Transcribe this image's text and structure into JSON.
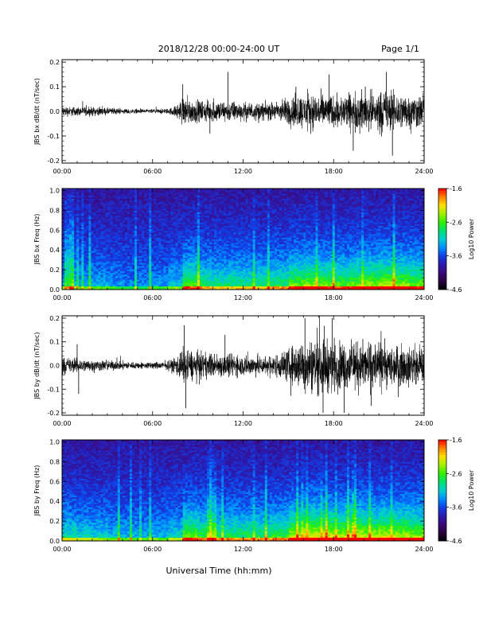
{
  "header": {
    "title": "2018/12/28  00:00-24:00 UT",
    "page": "Page 1/1"
  },
  "footer": {
    "xlabel": "Universal Time (hh:mm)"
  },
  "colors": {
    "colormap": [
      "#000000",
      "#2a0040",
      "#3c0a78",
      "#2a1ab0",
      "#1040e8",
      "#0090ff",
      "#00d0d0",
      "#00e070",
      "#30f000",
      "#a0f000",
      "#ffe000",
      "#ff8000",
      "#ff0000"
    ],
    "trace": "#000000",
    "axis": "#000000"
  },
  "chart_data": [
    {
      "type": "line",
      "id": "bx-dbdt",
      "ylabel": "JBS bx dB/dt (nT/sec)",
      "x_ticks": [
        "00:00",
        "06:00",
        "12:00",
        "18:00",
        "24:00"
      ],
      "y_ticks": [
        "0.2",
        "0.1",
        "0.0",
        "-0.1",
        "-0.2"
      ],
      "ylim": [
        -0.21,
        0.21
      ],
      "xlim": [
        0,
        24
      ],
      "envelope": {
        "hours": [
          0,
          1,
          2,
          3,
          4,
          5,
          6,
          7,
          7.5,
          8,
          9,
          10,
          11,
          12,
          13,
          14,
          15,
          16,
          17,
          18,
          19,
          20,
          21,
          22,
          23,
          24
        ],
        "amplitude": [
          0.03,
          0.025,
          0.025,
          0.02,
          0.015,
          0.012,
          0.012,
          0.015,
          0.03,
          0.08,
          0.06,
          0.06,
          0.06,
          0.05,
          0.05,
          0.05,
          0.08,
          0.1,
          0.1,
          0.09,
          0.1,
          0.11,
          0.12,
          0.11,
          0.1,
          0.09
        ]
      },
      "spikes": [
        {
          "hour": 8.0,
          "value": 0.11
        },
        {
          "hour": 11.0,
          "value": 0.16
        },
        {
          "hour": 15.5,
          "value": 0.1
        },
        {
          "hour": 17.7,
          "value": 0.15
        },
        {
          "hour": 19.3,
          "value": -0.16
        },
        {
          "hour": 20.1,
          "value": 0.1
        },
        {
          "hour": 21.9,
          "value": -0.18
        },
        {
          "hour": 21.5,
          "value": 0.16
        },
        {
          "hour": 9.8,
          "value": -0.09
        }
      ]
    },
    {
      "type": "heatmap",
      "id": "bx-spectrogram",
      "ylabel": "JBS bx Freq (Hz)",
      "x_ticks": [
        "00:00",
        "06:00",
        "12:00",
        "18:00",
        "24:00"
      ],
      "y_ticks": [
        "1.0",
        "0.8",
        "0.6",
        "0.4",
        "0.2",
        "0.0"
      ],
      "ylim": [
        0,
        1.02
      ],
      "xlim": [
        0,
        24
      ],
      "colorbar": {
        "label": "Log10 Power",
        "ticks": [
          "-1.6",
          "-2.6",
          "-3.6",
          "-4.6"
        ],
        "range": [
          -4.6,
          -1.6
        ]
      },
      "activity_by_hour": [
        0.25,
        0.2,
        0.2,
        0.15,
        0.12,
        0.12,
        0.15,
        0.25,
        0.55,
        0.45,
        0.4,
        0.4,
        0.4,
        0.4,
        0.45,
        0.6,
        0.65,
        0.6,
        0.55,
        0.6,
        0.65,
        0.7,
        0.65,
        0.6,
        0.55
      ]
    },
    {
      "type": "line",
      "id": "by-dbdt",
      "ylabel": "JBS by dB/dt (nT/sec)",
      "x_ticks": [
        "00:00",
        "06:00",
        "12:00",
        "18:00",
        "24:00"
      ],
      "y_ticks": [
        "0.2",
        "0.1",
        "0.0",
        "-0.1",
        "-0.2"
      ],
      "ylim": [
        -0.21,
        0.21
      ],
      "xlim": [
        0,
        24
      ],
      "envelope": {
        "hours": [
          0,
          1,
          2,
          3,
          4,
          5,
          6,
          7,
          7.5,
          8,
          9,
          10,
          11,
          12,
          13,
          14,
          15,
          16,
          17,
          18,
          19,
          20,
          21,
          22,
          23,
          24
        ],
        "amplitude": [
          0.05,
          0.04,
          0.035,
          0.03,
          0.025,
          0.02,
          0.02,
          0.025,
          0.05,
          0.11,
          0.08,
          0.07,
          0.07,
          0.06,
          0.06,
          0.06,
          0.1,
          0.15,
          0.17,
          0.15,
          0.13,
          0.14,
          0.13,
          0.12,
          0.11,
          0.1
        ]
      },
      "spikes": [
        {
          "hour": 1.0,
          "value": 0.09
        },
        {
          "hour": 1.1,
          "value": -0.12
        },
        {
          "hour": 8.2,
          "value": -0.18
        },
        {
          "hour": 8.1,
          "value": 0.17
        },
        {
          "hour": 10.8,
          "value": 0.13
        },
        {
          "hour": 16.1,
          "value": 0.2
        },
        {
          "hour": 17.3,
          "value": -0.2
        },
        {
          "hour": 17.9,
          "value": 0.2
        },
        {
          "hour": 18.7,
          "value": -0.2
        },
        {
          "hour": 20.5,
          "value": -0.17
        }
      ]
    },
    {
      "type": "heatmap",
      "id": "by-spectrogram",
      "ylabel": "JBS by Freq (Hz)",
      "x_ticks": [
        "00:00",
        "06:00",
        "12:00",
        "18:00",
        "24:00"
      ],
      "y_ticks": [
        "1.0",
        "0.8",
        "0.6",
        "0.4",
        "0.2",
        "0.0"
      ],
      "ylim": [
        0,
        1.02
      ],
      "xlim": [
        0,
        24
      ],
      "colorbar": {
        "label": "Log10 Power",
        "ticks": [
          "-1.6",
          "-2.6",
          "-3.6",
          "-4.6"
        ],
        "range": [
          -4.6,
          -1.6
        ]
      },
      "activity_by_hour": [
        0.35,
        0.3,
        0.28,
        0.22,
        0.2,
        0.2,
        0.22,
        0.3,
        0.6,
        0.5,
        0.45,
        0.45,
        0.45,
        0.45,
        0.5,
        0.7,
        0.8,
        0.75,
        0.7,
        0.75,
        0.7,
        0.75,
        0.7,
        0.65,
        0.6
      ]
    }
  ]
}
